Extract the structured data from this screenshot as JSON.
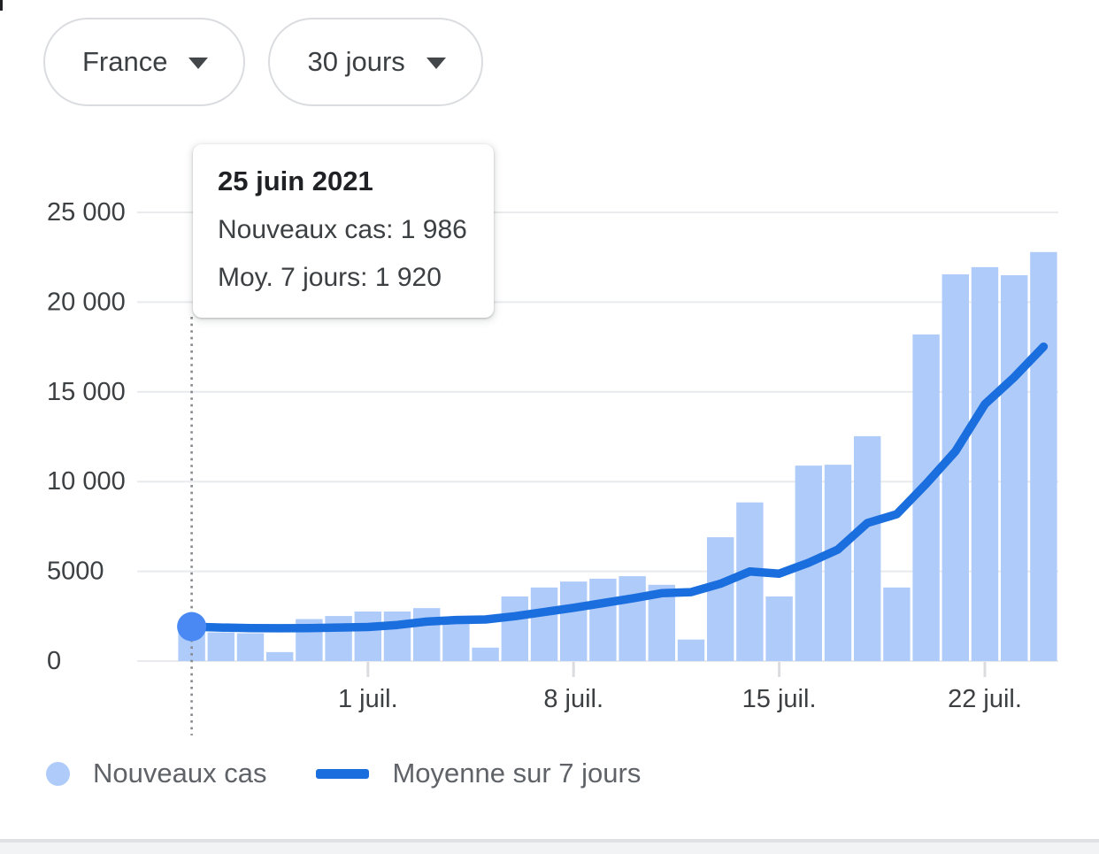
{
  "filters": {
    "country": {
      "label": "France"
    },
    "period": {
      "label": "30 jours"
    }
  },
  "tooltip": {
    "title": "25 juin 2021",
    "lines": [
      {
        "label": "Nouveaux cas",
        "value": "1 986",
        "text": "Nouveaux cas: 1 986"
      },
      {
        "label": "Moy. 7 jours",
        "value": "1 920",
        "text": "Moy. 7 jours: 1 920"
      }
    ]
  },
  "legend": {
    "items": [
      {
        "label": "Nouveaux cas",
        "swatch": "dot"
      },
      {
        "label": "Moyenne sur 7 jours",
        "swatch": "line"
      }
    ]
  },
  "colors": {
    "bar": "#aecbfa",
    "line": "#1b6ede",
    "selected_dot": "#4a89f4",
    "grid": "#e8eaed",
    "tick": "#dadce0",
    "axis_text": "#3c4043",
    "guide_dotted": "#85898d"
  },
  "chart_data": {
    "type": "bar",
    "title": "",
    "xlabel": "",
    "ylabel": "",
    "ylim": [
      0,
      25000
    ],
    "grid": "horizontal",
    "legend_position": "bottom",
    "selected": {
      "index": 0,
      "date": "25 juin 2021",
      "nouveaux_cas": 1986,
      "moy_7_jours": 1920
    },
    "y_ticks": [
      {
        "value": 0,
        "label": "0"
      },
      {
        "value": 5000,
        "label": "5000"
      },
      {
        "value": 10000,
        "label": "10 000"
      },
      {
        "value": 15000,
        "label": "15 000"
      },
      {
        "value": 20000,
        "label": "20 000"
      },
      {
        "value": 25000,
        "label": "25 000"
      }
    ],
    "x_ticks": [
      {
        "index": 6,
        "label": "1 juil."
      },
      {
        "index": 13,
        "label": "8 juil."
      },
      {
        "index": 20,
        "label": "15 juil."
      },
      {
        "index": 27,
        "label": "22 juil."
      }
    ],
    "series": [
      {
        "name": "Nouveaux cas",
        "type": "bar",
        "values": [
          1986,
          1600,
          1550,
          500,
          2340,
          2510,
          2760,
          2760,
          2950,
          2200,
          750,
          3600,
          4100,
          4430,
          4590,
          4730,
          4250,
          1200,
          6900,
          8840,
          3600,
          10890,
          10940,
          12530,
          4100,
          18200,
          21550,
          21950,
          21500,
          22790
        ]
      },
      {
        "name": "Moyenne sur 7 jours",
        "type": "line",
        "values": [
          1920,
          1870,
          1840,
          1830,
          1840,
          1870,
          1900,
          2010,
          2200,
          2290,
          2320,
          2500,
          2730,
          2970,
          3230,
          3490,
          3780,
          3840,
          4310,
          4990,
          4870,
          5480,
          6220,
          7690,
          8180,
          9870,
          11690,
          14310,
          15820,
          17520
        ]
      }
    ]
  }
}
